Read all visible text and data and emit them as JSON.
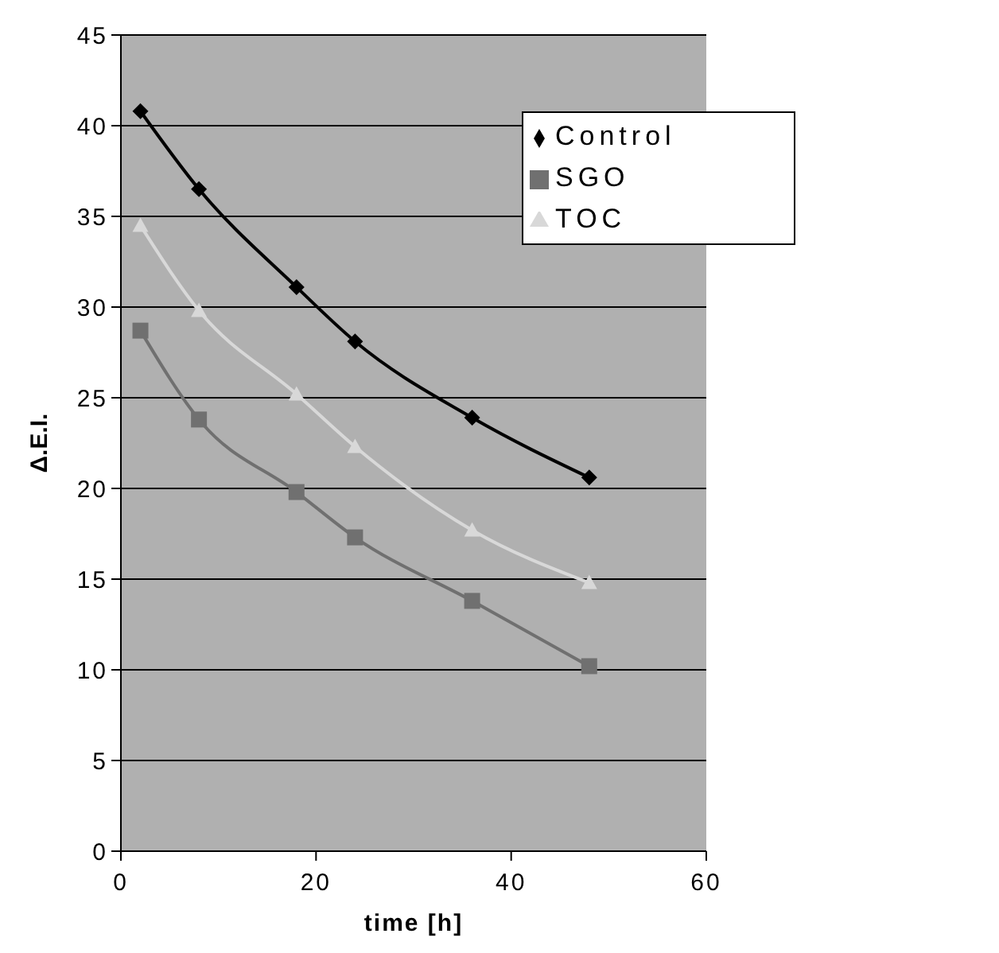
{
  "chart_data": {
    "type": "line",
    "xlabel": "time [h]",
    "ylabel": "Δ.E.I.",
    "x": [
      2,
      8,
      18,
      24,
      36,
      48
    ],
    "xlim": [
      0,
      60
    ],
    "xticks": [
      0,
      20,
      40,
      60
    ],
    "ylim": [
      0,
      45
    ],
    "yticks": [
      0,
      5,
      10,
      15,
      20,
      25,
      30,
      35,
      40,
      45
    ],
    "grid": "y",
    "legend": "top right",
    "series": [
      {
        "name": "Control",
        "color": "#000000",
        "marker": "diamond",
        "values": [
          40.8,
          36.5,
          31.1,
          28.1,
          23.9,
          20.6
        ]
      },
      {
        "name": "SGO",
        "color": "#707070",
        "marker": "square",
        "values": [
          28.7,
          23.8,
          19.8,
          17.3,
          13.8,
          10.2
        ]
      },
      {
        "name": "TOC",
        "color": "#d8d8d8",
        "marker": "triangle",
        "values": [
          34.5,
          29.8,
          25.2,
          22.3,
          17.7,
          14.8
        ]
      }
    ]
  }
}
